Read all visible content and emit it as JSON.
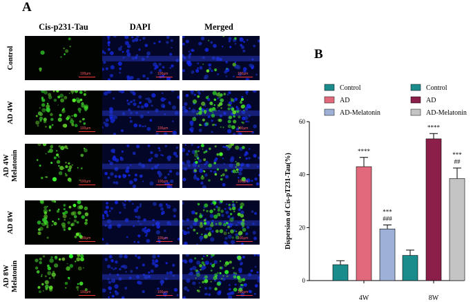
{
  "panel_a": {
    "letter": "A",
    "columns": [
      "Cis-p231-Tau",
      "DAPI",
      "Merged"
    ],
    "rows": [
      {
        "label_lines": [
          "Control"
        ],
        "green_level": 0.1
      },
      {
        "label_lines": [
          "AD 4W"
        ],
        "green_level": 0.85
      },
      {
        "label_lines": [
          "AD 4W",
          "Melatonin"
        ],
        "green_level": 0.5
      },
      {
        "label_lines": [
          "AD 8W"
        ],
        "green_level": 0.75
      },
      {
        "label_lines": [
          "AD 8W",
          "Melatonin"
        ],
        "green_level": 0.6
      }
    ],
    "scale_label": "100µm"
  },
  "panel_b": {
    "letter": "B",
    "chart_data": {
      "type": "bar",
      "categories": [
        "4W",
        "8W"
      ],
      "ylabel": "Dispersion of Cis-pT231-Tau(%)",
      "xlabel": "",
      "ylim": [
        0,
        60
      ],
      "yticks": [
        0,
        20,
        40,
        60
      ],
      "series": [
        {
          "name": "Control",
          "color": "#1a8c8c",
          "values": [
            6,
            9.5
          ],
          "errors": [
            1.5,
            2
          ],
          "annotations": [
            "",
            ""
          ]
        },
        {
          "name": "AD",
          "color_4w": "#e06a7c",
          "color_8w": "#8c1f4a",
          "color": "#e06a7c",
          "values": [
            43,
            53.5
          ],
          "errors": [
            3.5,
            2
          ],
          "annotations": [
            "****",
            "****"
          ]
        },
        {
          "name": "AD-Melatonin",
          "color_4w": "#9fb0d6",
          "color_8w": "#c4c4c4",
          "color": "#9fb0d6",
          "values": [
            19.5,
            38.5
          ],
          "errors": [
            1.5,
            4
          ],
          "annotations": [
            "***\n###",
            "***\n##"
          ]
        }
      ],
      "legends": [
        {
          "entries": [
            {
              "name": "Control",
              "color": "#1a8c8c"
            },
            {
              "name": "AD",
              "color": "#e06a7c"
            },
            {
              "name": "AD-Melatonin",
              "color": "#9fb0d6"
            }
          ]
        },
        {
          "entries": [
            {
              "name": "Control",
              "color": "#1a8c8c"
            },
            {
              "name": "AD",
              "color": "#8c1f4a"
            },
            {
              "name": "AD-Melatonin",
              "color": "#c4c4c4"
            }
          ]
        }
      ]
    }
  }
}
